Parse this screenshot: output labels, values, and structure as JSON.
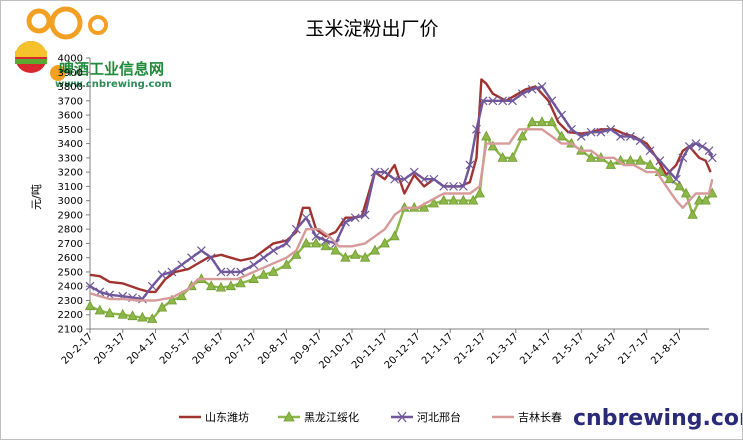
{
  "watermark": {
    "name_cn": "啤酒工业信息网",
    "url": "www.cnbrewing.com",
    "brand": "cnbrewing.com"
  },
  "colors": {
    "shandong": "#a0332f",
    "heilongjiang": "#8db848",
    "hebei": "#6f579a",
    "jilin": "#d79a9a",
    "axis": "#808080",
    "brand": "#2a2a78"
  },
  "chart_data": {
    "type": "line",
    "title": "玉米淀粉出厂价",
    "xlabel": "",
    "ylabel": "元/吨",
    "ylim": [
      2100,
      4000
    ],
    "ytick_step": 100,
    "x_categories": [
      "20-2-17",
      "20-3-17",
      "20-4-17",
      "20-5-17",
      "20-6-17",
      "20-7-17",
      "20-8-17",
      "20-9-17",
      "20-10-17",
      "20-11-17",
      "20-12-17",
      "21-1-17",
      "21-2-17",
      "21-3-17",
      "21-4-17",
      "21-5-17",
      "21-6-17",
      "21-7-17",
      "21-8-17"
    ],
    "x_range": [
      0,
      18.9
    ],
    "legend_position": "bottom",
    "series": [
      {
        "name": "山东潍坊",
        "color": "#a0332f",
        "marker": "none",
        "points": [
          [
            0,
            2480
          ],
          [
            0.3,
            2470
          ],
          [
            0.6,
            2430
          ],
          [
            1,
            2420
          ],
          [
            1.5,
            2380
          ],
          [
            1.8,
            2360
          ],
          [
            2,
            2360
          ],
          [
            2.3,
            2450
          ],
          [
            2.6,
            2500
          ],
          [
            3,
            2520
          ],
          [
            3.3,
            2560
          ],
          [
            3.6,
            2600
          ],
          [
            4,
            2620
          ],
          [
            4.3,
            2600
          ],
          [
            4.6,
            2580
          ],
          [
            5,
            2600
          ],
          [
            5.3,
            2650
          ],
          [
            5.6,
            2700
          ],
          [
            6,
            2720
          ],
          [
            6.3,
            2780
          ],
          [
            6.5,
            2950
          ],
          [
            6.7,
            2950
          ],
          [
            6.9,
            2800
          ],
          [
            7.2,
            2750
          ],
          [
            7.5,
            2780
          ],
          [
            7.8,
            2880
          ],
          [
            8,
            2880
          ],
          [
            8.3,
            2890
          ],
          [
            8.7,
            3200
          ],
          [
            9,
            3150
          ],
          [
            9.3,
            3250
          ],
          [
            9.6,
            3050
          ],
          [
            9.9,
            3180
          ],
          [
            10.2,
            3100
          ],
          [
            10.5,
            3150
          ],
          [
            10.8,
            3100
          ],
          [
            11,
            3100
          ],
          [
            11.3,
            3100
          ],
          [
            11.6,
            3130
          ],
          [
            11.8,
            3300
          ],
          [
            11.95,
            3850
          ],
          [
            12.1,
            3820
          ],
          [
            12.3,
            3750
          ],
          [
            12.7,
            3700
          ],
          [
            13,
            3740
          ],
          [
            13.3,
            3780
          ],
          [
            13.6,
            3800
          ],
          [
            14,
            3700
          ],
          [
            14.3,
            3550
          ],
          [
            14.6,
            3480
          ],
          [
            15,
            3470
          ],
          [
            15.3,
            3480
          ],
          [
            15.6,
            3500
          ],
          [
            16,
            3500
          ],
          [
            16.3,
            3470
          ],
          [
            16.6,
            3450
          ],
          [
            17,
            3400
          ],
          [
            17.3,
            3300
          ],
          [
            17.6,
            3180
          ],
          [
            17.9,
            3250
          ],
          [
            18.1,
            3350
          ],
          [
            18.3,
            3380
          ],
          [
            18.6,
            3300
          ],
          [
            18.8,
            3280
          ],
          [
            18.95,
            3200
          ]
        ]
      },
      {
        "name": "黑龙江绥化",
        "color": "#8db848",
        "marker": "triangle",
        "points": [
          [
            0,
            2260
          ],
          [
            0.3,
            2230
          ],
          [
            0.6,
            2210
          ],
          [
            1,
            2200
          ],
          [
            1.3,
            2190
          ],
          [
            1.6,
            2180
          ],
          [
            1.9,
            2170
          ],
          [
            2.2,
            2250
          ],
          [
            2.5,
            2300
          ],
          [
            2.8,
            2330
          ],
          [
            3.1,
            2400
          ],
          [
            3.4,
            2450
          ],
          [
            3.7,
            2400
          ],
          [
            4,
            2390
          ],
          [
            4.3,
            2400
          ],
          [
            4.6,
            2420
          ],
          [
            5,
            2450
          ],
          [
            5.3,
            2480
          ],
          [
            5.6,
            2500
          ],
          [
            6,
            2550
          ],
          [
            6.3,
            2620
          ],
          [
            6.6,
            2700
          ],
          [
            6.9,
            2700
          ],
          [
            7.2,
            2680
          ],
          [
            7.5,
            2650
          ],
          [
            7.8,
            2600
          ],
          [
            8.1,
            2620
          ],
          [
            8.4,
            2600
          ],
          [
            8.7,
            2650
          ],
          [
            9,
            2700
          ],
          [
            9.3,
            2750
          ],
          [
            9.6,
            2950
          ],
          [
            9.9,
            2950
          ],
          [
            10.2,
            2950
          ],
          [
            10.5,
            2980
          ],
          [
            10.8,
            3000
          ],
          [
            11.1,
            3000
          ],
          [
            11.4,
            3000
          ],
          [
            11.7,
            3000
          ],
          [
            11.9,
            3050
          ],
          [
            12.1,
            3450
          ],
          [
            12.3,
            3380
          ],
          [
            12.6,
            3300
          ],
          [
            12.9,
            3300
          ],
          [
            13.2,
            3450
          ],
          [
            13.5,
            3550
          ],
          [
            13.8,
            3550
          ],
          [
            14.1,
            3550
          ],
          [
            14.4,
            3450
          ],
          [
            14.7,
            3400
          ],
          [
            15,
            3350
          ],
          [
            15.3,
            3300
          ],
          [
            15.6,
            3300
          ],
          [
            15.9,
            3250
          ],
          [
            16.2,
            3280
          ],
          [
            16.5,
            3280
          ],
          [
            16.8,
            3280
          ],
          [
            17.1,
            3250
          ],
          [
            17.4,
            3200
          ],
          [
            17.7,
            3150
          ],
          [
            18,
            3100
          ],
          [
            18.2,
            3050
          ],
          [
            18.4,
            2900
          ],
          [
            18.6,
            3000
          ],
          [
            18.8,
            3000
          ],
          [
            19,
            3050
          ]
        ]
      },
      {
        "name": "河北邢台",
        "color": "#6f579a",
        "marker": "x",
        "points": [
          [
            0,
            2400
          ],
          [
            0.3,
            2360
          ],
          [
            0.6,
            2340
          ],
          [
            1,
            2330
          ],
          [
            1.3,
            2320
          ],
          [
            1.6,
            2310
          ],
          [
            1.9,
            2400
          ],
          [
            2.2,
            2480
          ],
          [
            2.5,
            2500
          ],
          [
            2.8,
            2550
          ],
          [
            3.1,
            2600
          ],
          [
            3.4,
            2650
          ],
          [
            3.7,
            2600
          ],
          [
            4,
            2500
          ],
          [
            4.3,
            2500
          ],
          [
            4.6,
            2500
          ],
          [
            5,
            2550
          ],
          [
            5.3,
            2600
          ],
          [
            5.6,
            2650
          ],
          [
            6,
            2700
          ],
          [
            6.3,
            2800
          ],
          [
            6.6,
            2880
          ],
          [
            6.9,
            2750
          ],
          [
            7.2,
            2720
          ],
          [
            7.5,
            2700
          ],
          [
            7.8,
            2850
          ],
          [
            8.1,
            2880
          ],
          [
            8.4,
            2900
          ],
          [
            8.7,
            3200
          ],
          [
            9,
            3200
          ],
          [
            9.3,
            3150
          ],
          [
            9.6,
            3150
          ],
          [
            9.9,
            3200
          ],
          [
            10.2,
            3150
          ],
          [
            10.5,
            3150
          ],
          [
            10.8,
            3100
          ],
          [
            11.1,
            3100
          ],
          [
            11.4,
            3100
          ],
          [
            11.6,
            3250
          ],
          [
            11.8,
            3500
          ],
          [
            12,
            3700
          ],
          [
            12.3,
            3700
          ],
          [
            12.6,
            3700
          ],
          [
            12.9,
            3700
          ],
          [
            13.2,
            3750
          ],
          [
            13.5,
            3780
          ],
          [
            13.8,
            3800
          ],
          [
            14.1,
            3700
          ],
          [
            14.4,
            3600
          ],
          [
            14.7,
            3500
          ],
          [
            15,
            3450
          ],
          [
            15.3,
            3480
          ],
          [
            15.6,
            3480
          ],
          [
            15.9,
            3500
          ],
          [
            16.2,
            3450
          ],
          [
            16.5,
            3450
          ],
          [
            16.8,
            3420
          ],
          [
            17.1,
            3350
          ],
          [
            17.4,
            3280
          ],
          [
            17.7,
            3200
          ],
          [
            17.9,
            3150
          ],
          [
            18.1,
            3300
          ],
          [
            18.3,
            3380
          ],
          [
            18.5,
            3400
          ],
          [
            18.7,
            3380
          ],
          [
            18.9,
            3350
          ],
          [
            19,
            3300
          ]
        ]
      },
      {
        "name": "吉林长春",
        "color": "#d79a9a",
        "marker": "none",
        "points": [
          [
            0,
            2350
          ],
          [
            0.3,
            2330
          ],
          [
            0.6,
            2310
          ],
          [
            1,
            2310
          ],
          [
            1.5,
            2300
          ],
          [
            2,
            2300
          ],
          [
            2.5,
            2320
          ],
          [
            3,
            2380
          ],
          [
            3.3,
            2450
          ],
          [
            3.6,
            2450
          ],
          [
            4,
            2450
          ],
          [
            4.5,
            2450
          ],
          [
            5,
            2500
          ],
          [
            5.5,
            2550
          ],
          [
            6,
            2600
          ],
          [
            6.3,
            2650
          ],
          [
            6.6,
            2800
          ],
          [
            7,
            2800
          ],
          [
            7.3,
            2750
          ],
          [
            7.6,
            2680
          ],
          [
            8,
            2680
          ],
          [
            8.4,
            2700
          ],
          [
            8.7,
            2750
          ],
          [
            9,
            2800
          ],
          [
            9.3,
            2900
          ],
          [
            9.6,
            2950
          ],
          [
            10,
            2950
          ],
          [
            10.4,
            3000
          ],
          [
            10.8,
            3050
          ],
          [
            11.2,
            3050
          ],
          [
            11.6,
            3050
          ],
          [
            11.9,
            3100
          ],
          [
            12.1,
            3400
          ],
          [
            12.4,
            3400
          ],
          [
            12.8,
            3400
          ],
          [
            13.1,
            3500
          ],
          [
            13.5,
            3500
          ],
          [
            13.8,
            3500
          ],
          [
            14.1,
            3450
          ],
          [
            14.4,
            3400
          ],
          [
            14.7,
            3400
          ],
          [
            15,
            3350
          ],
          [
            15.3,
            3350
          ],
          [
            15.6,
            3300
          ],
          [
            16,
            3300
          ],
          [
            16.3,
            3250
          ],
          [
            16.6,
            3250
          ],
          [
            17,
            3200
          ],
          [
            17.3,
            3200
          ],
          [
            17.6,
            3100
          ],
          [
            17.9,
            3000
          ],
          [
            18.1,
            2950
          ],
          [
            18.3,
            3000
          ],
          [
            18.5,
            3050
          ],
          [
            18.7,
            3050
          ],
          [
            18.9,
            3050
          ],
          [
            19,
            3150
          ]
        ]
      }
    ]
  }
}
